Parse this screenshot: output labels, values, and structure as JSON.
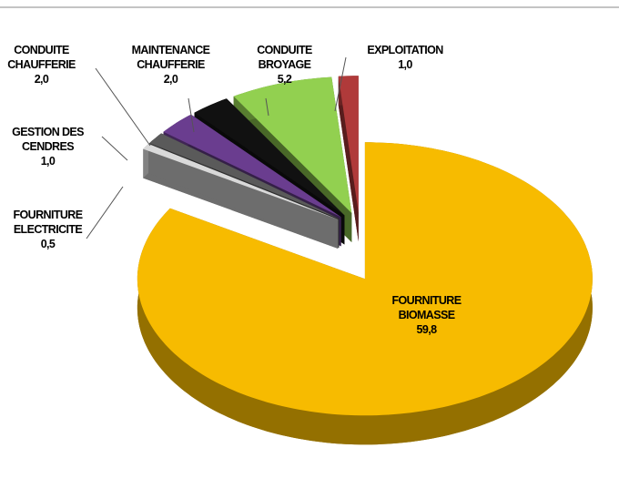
{
  "chart_data": {
    "type": "pie",
    "categories": [
      "FOURNITURE BIOMASSE",
      "FOURNITURE ELECTRICITE",
      "GESTION DES CENDRES",
      "CONDUITE CHAUFFERIE",
      "MAINTENANCE CHAUFFERIE",
      "CONDUITE BROYAGE",
      "EXPLOITATION"
    ],
    "values": [
      59.8,
      0.5,
      1.0,
      2.0,
      2.0,
      5.2,
      1.0
    ],
    "value_labels": [
      "59,8",
      "0,5",
      "1,0",
      "2,0",
      "2,0",
      "5,2",
      "1,0"
    ],
    "colors": [
      "#f7bb00",
      "#d9d9d9",
      "#5a5a5a",
      "#6a3d8f",
      "#111111",
      "#92d050",
      "#b03a3a"
    ]
  }
}
